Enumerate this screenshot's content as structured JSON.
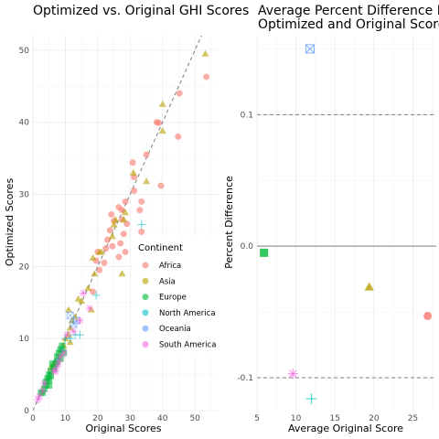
{
  "colors": {
    "Africa": "#F8766D",
    "Asia": "#B79F00",
    "Europe": "#00BA38",
    "North America": "#00BFC4",
    "Oceania": "#619CFF",
    "South America": "#F564E3"
  },
  "chart_data": [
    {
      "type": "scatter",
      "title": "Optimized vs. Original GHI Scores",
      "xlabel": "Original Scores",
      "ylabel": "Optimized Scores",
      "xlim": [
        0,
        57
      ],
      "ylim": [
        0,
        52
      ],
      "x_ticks": [
        0,
        10,
        20,
        30,
        40,
        50
      ],
      "y_ticks": [
        0,
        10,
        20,
        30,
        40,
        50
      ],
      "grid": true,
      "reference_line": "y = x (dashed)",
      "legend": {
        "title": "Continent",
        "placement": "right",
        "entries": [
          "Africa",
          "Asia",
          "Europe",
          "North America",
          "Oceania",
          "South America"
        ]
      },
      "series": [
        {
          "name": "Africa",
          "marker": "circle",
          "points": [
            [
              53.5,
              46.3
            ],
            [
              45.2,
              44.0
            ],
            [
              38.2,
              40.0
            ],
            [
              38.8,
              39.9
            ],
            [
              44.8,
              38.0
            ],
            [
              39.5,
              31.2
            ],
            [
              35.0,
              35.5
            ],
            [
              30.8,
              34.4
            ],
            [
              31.2,
              32.4
            ],
            [
              33.5,
              29.0
            ],
            [
              31.2,
              30.5
            ],
            [
              33.0,
              27.8
            ],
            [
              28.5,
              29.0
            ],
            [
              27.5,
              27.8
            ],
            [
              26.5,
              28.2
            ],
            [
              27.5,
              26.5
            ],
            [
              25.0,
              26.3
            ],
            [
              24.2,
              27.2
            ],
            [
              23.8,
              25.0
            ],
            [
              23.0,
              23.7
            ],
            [
              22.5,
              22.5
            ],
            [
              24.5,
              22.8
            ],
            [
              27.0,
              23.2
            ],
            [
              28.0,
              24.5
            ],
            [
              33.5,
              24.8
            ],
            [
              28.5,
              22.0
            ],
            [
              26.5,
              21.3
            ],
            [
              22.0,
              20.5
            ],
            [
              20.0,
              22.0
            ],
            [
              19.5,
              20.8
            ],
            [
              20.5,
              19.5
            ],
            [
              18.5,
              16.5
            ],
            [
              29.0,
              25.9
            ]
          ]
        },
        {
          "name": "Asia",
          "marker": "triangle",
          "points": [
            [
              53.2,
              49.5
            ],
            [
              40.0,
              42.5
            ],
            [
              40.0,
              38.8
            ],
            [
              35.0,
              31.8
            ],
            [
              31.0,
              33.0
            ],
            [
              28.5,
              27.5
            ],
            [
              25.5,
              26.5
            ],
            [
              25.0,
              25.8
            ],
            [
              24.5,
              24.2
            ],
            [
              28.0,
              26.5
            ],
            [
              21.2,
              22.0
            ],
            [
              18.5,
              21.2
            ],
            [
              20.5,
              22.0
            ],
            [
              19.0,
              19.0
            ],
            [
              27.5,
              19.0
            ],
            [
              17.0,
              17.0
            ],
            [
              18.0,
              14.0
            ],
            [
              15.0,
              15.2
            ],
            [
              14.0,
              15.5
            ],
            [
              13.0,
              13.0
            ],
            [
              12.0,
              12.5
            ],
            [
              11.5,
              11.5
            ],
            [
              11.0,
              10.5
            ],
            [
              10.0,
              10.0
            ],
            [
              11.5,
              9.5
            ],
            [
              9.5,
              9.0
            ],
            [
              9.0,
              8.5
            ],
            [
              8.0,
              7.5
            ],
            [
              7.5,
              7.0
            ],
            [
              7.0,
              6.5
            ],
            [
              6.5,
              6.5
            ],
            [
              5.5,
              6.0
            ],
            [
              11.0,
              14.0
            ]
          ]
        },
        {
          "name": "Europe",
          "marker": "square",
          "points": [
            [
              9.0,
              9.0
            ],
            [
              8.5,
              8.5
            ],
            [
              8.0,
              8.0
            ],
            [
              7.5,
              7.5
            ],
            [
              9.5,
              8.0
            ],
            [
              8.5,
              7.2
            ],
            [
              7.0,
              6.5
            ],
            [
              6.5,
              6.0
            ],
            [
              6.0,
              6.5
            ],
            [
              5.5,
              5.5
            ],
            [
              5.0,
              5.0
            ],
            [
              5.5,
              4.8
            ],
            [
              4.5,
              4.5
            ],
            [
              5.0,
              4.2
            ],
            [
              4.0,
              4.0
            ],
            [
              5.0,
              3.5
            ],
            [
              4.0,
              3.5
            ],
            [
              3.5,
              3.0
            ],
            [
              3.0,
              2.5
            ],
            [
              2.5,
              2.5
            ],
            [
              6.5,
              5.8
            ],
            [
              7.5,
              6.8
            ]
          ]
        },
        {
          "name": "North America",
          "marker": "plus",
          "points": [
            [
              33.5,
              25.8
            ],
            [
              19.5,
              16.0
            ],
            [
              13.0,
              10.5
            ],
            [
              10.0,
              10.0
            ],
            [
              9.0,
              8.5
            ],
            [
              7.5,
              7.0
            ],
            [
              11.5,
              10.0
            ],
            [
              14.5,
              10.5
            ]
          ]
        },
        {
          "name": "Oceania",
          "marker": "square-x",
          "points": [
            [
              11.5,
              13.2
            ],
            [
              12.5,
              12.0
            ],
            [
              13.5,
              12.5
            ]
          ]
        },
        {
          "name": "South America",
          "marker": "asterisk",
          "points": [
            [
              17.5,
              14.2
            ],
            [
              15.5,
              16.3
            ],
            [
              14.5,
              12.5
            ],
            [
              10.5,
              10.5
            ],
            [
              12.5,
              11.0
            ],
            [
              8.5,
              7.5
            ],
            [
              9.5,
              8.0
            ],
            [
              7.5,
              6.2
            ],
            [
              7.0,
              5.5
            ],
            [
              8.0,
              6.8
            ],
            [
              6.5,
              5.5
            ],
            [
              3.5,
              3.8
            ],
            [
              3.0,
              2.8
            ],
            [
              2.0,
              2.0
            ],
            [
              1.5,
              1.5
            ]
          ]
        }
      ]
    },
    {
      "type": "scatter",
      "title": "Average Percent Difference Between Optimized and Original Scores",
      "title_lines": [
        "Average Percent Difference Be",
        "Optimized and Original Scores"
      ],
      "xlabel": "Average Original Score",
      "ylabel": "Percent Difference",
      "xlim": [
        5,
        28
      ],
      "ylim": [
        -0.125,
        0.16
      ],
      "x_ticks": [
        5,
        10,
        15,
        20,
        25
      ],
      "y_ticks": [
        -0.1,
        0.0,
        0.1
      ],
      "y_tick_labels": [
        "-0.1",
        "0.0",
        "0.1"
      ],
      "grid": true,
      "reference_lines": [
        {
          "y": 0.1,
          "style": "dashed"
        },
        {
          "y": 0.0,
          "style": "solid"
        },
        {
          "y": -0.1,
          "style": "dashed"
        }
      ],
      "points": [
        {
          "continent": "Africa",
          "marker": "circle",
          "x": 26.9,
          "y": -0.053
        },
        {
          "continent": "Asia",
          "marker": "triangle",
          "x": 19.4,
          "y": -0.031
        },
        {
          "continent": "Europe",
          "marker": "square",
          "x": 5.9,
          "y": -0.005
        },
        {
          "continent": "North America",
          "marker": "plus",
          "x": 12.0,
          "y": -0.116
        },
        {
          "continent": "Oceania",
          "marker": "square-x",
          "x": 11.8,
          "y": 0.15
        },
        {
          "continent": "South America",
          "marker": "asterisk",
          "x": 9.6,
          "y": -0.097
        }
      ]
    }
  ]
}
